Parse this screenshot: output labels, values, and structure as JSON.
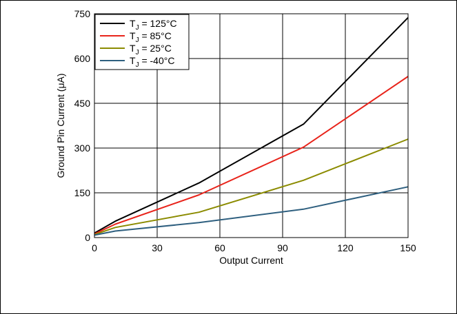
{
  "chart_data": {
    "type": "line",
    "xlabel": "Output Current",
    "ylabel": "Ground Pin Current (μA)",
    "xlim": [
      0,
      150
    ],
    "ylim": [
      0,
      750
    ],
    "xticks": [
      0,
      30,
      60,
      90,
      120,
      150
    ],
    "yticks": [
      0,
      150,
      300,
      450,
      600,
      750
    ],
    "grid": true,
    "legend_position": "top-left",
    "series": [
      {
        "name": "125°C",
        "name_prefix": "T",
        "name_sub": "J",
        "name_suffix": " = 125°C",
        "color": "#000000",
        "x": [
          0,
          10,
          50,
          100,
          150
        ],
        "y": [
          15,
          55,
          183,
          380,
          737
        ]
      },
      {
        "name": "85°C",
        "name_prefix": "T",
        "name_sub": "J",
        "name_suffix": " = 85°C",
        "color": "#e8231a",
        "x": [
          0,
          10,
          50,
          100,
          150
        ],
        "y": [
          12,
          45,
          143,
          303,
          540
        ]
      },
      {
        "name": "25°C",
        "name_prefix": "T",
        "name_sub": "J",
        "name_suffix": " = 25°C",
        "color": "#8b8b00",
        "x": [
          0,
          10,
          50,
          100,
          150
        ],
        "y": [
          10,
          34,
          85,
          192,
          330
        ]
      },
      {
        "name": "-40°C",
        "name_prefix": "T",
        "name_sub": "J",
        "name_suffix": " = -40°C",
        "color": "#2e5f7f",
        "x": [
          0,
          10,
          50,
          100,
          150
        ],
        "y": [
          8,
          22,
          50,
          95,
          170
        ]
      }
    ]
  }
}
